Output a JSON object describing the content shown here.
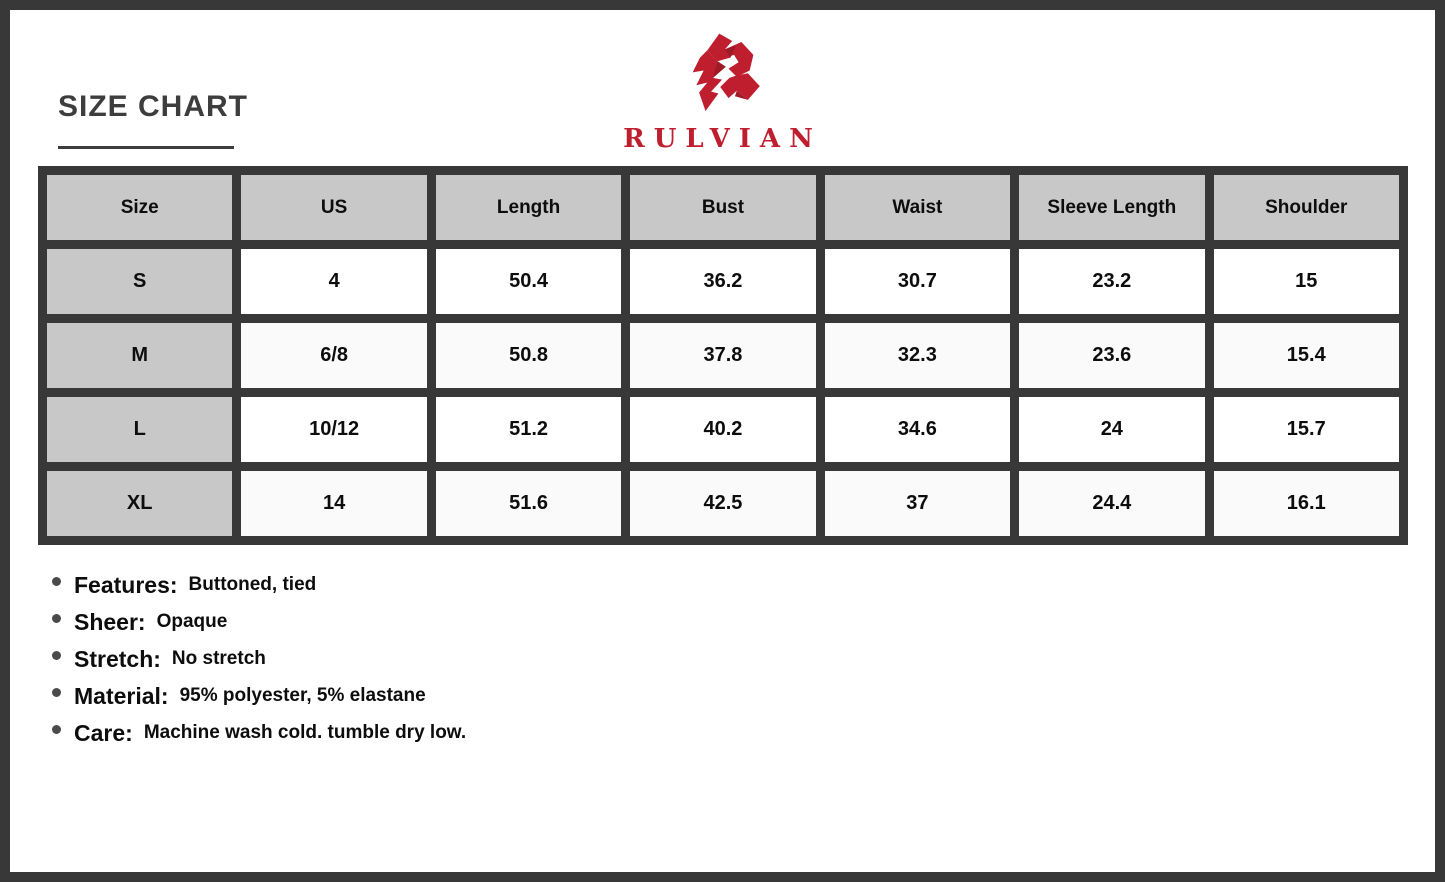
{
  "page": {
    "title": "SIZE CHART"
  },
  "brand": {
    "name": "RULVIAN"
  },
  "colors": {
    "accent_red": "#bf1e2e",
    "accent_red_shade": "#9c1b26",
    "frame_dark": "#383838",
    "header_gray": "#c8c8c8",
    "title_gray": "#3d3d3d"
  },
  "table": {
    "headers": [
      "Size",
      "US",
      "Length",
      "Bust",
      "Waist",
      "Sleeve Length",
      "Shoulder"
    ],
    "rows": [
      {
        "size": "S",
        "values": [
          "4",
          "50.4",
          "36.2",
          "30.7",
          "23.2",
          "15"
        ]
      },
      {
        "size": "M",
        "values": [
          "6/8",
          "50.8",
          "37.8",
          "32.3",
          "23.6",
          "15.4"
        ]
      },
      {
        "size": "L",
        "values": [
          "10/12",
          "51.2",
          "40.2",
          "34.6",
          "24",
          "15.7"
        ]
      },
      {
        "size": "XL",
        "values": [
          "14",
          "51.6",
          "42.5",
          "37",
          "24.4",
          "16.1"
        ]
      }
    ]
  },
  "details": [
    {
      "label": "Features:",
      "value": "Buttoned, tied"
    },
    {
      "label": "Sheer:",
      "value": "Opaque"
    },
    {
      "label": "Stretch:",
      "value": "No stretch"
    },
    {
      "label": "Material:",
      "value": "95% polyester, 5% elastane"
    },
    {
      "label": "Care:",
      "value": "Machine wash cold. tumble dry low."
    }
  ]
}
